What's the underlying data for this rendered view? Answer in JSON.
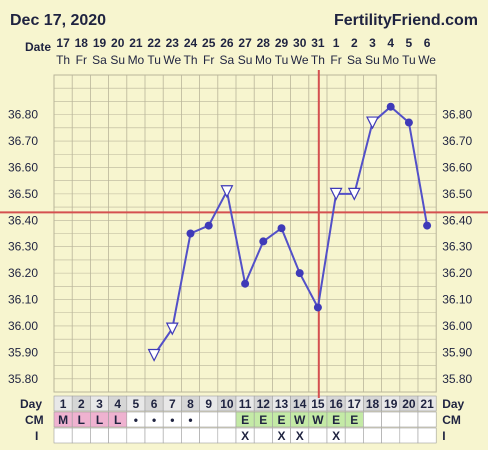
{
  "header": {
    "date": "Dec 17, 2020",
    "site": "FertilityFriend.com"
  },
  "row_labels": {
    "date": "Date",
    "day": "Day",
    "cm": "CM",
    "i": "I"
  },
  "colors": {
    "background": "#f7f5cf",
    "grid": "#b9b59a",
    "line": "#5350c8",
    "marker": "#3f3ab8",
    "coverline": "#d45050",
    "ovulation": "#d45050",
    "menses_cell": "#efb2d0",
    "eggwhite_cell": "#c4eaa6",
    "day_row": "#e0e0e0"
  },
  "chart_data": {
    "type": "line",
    "title": "",
    "xlabel": "",
    "ylabel": "",
    "ylim": [
      35.75,
      36.95
    ],
    "yticks": [
      "36.80",
      "36.70",
      "36.60",
      "36.50",
      "36.40",
      "36.30",
      "36.20",
      "36.10",
      "36.00",
      "35.90",
      "35.80"
    ],
    "ytick_values": [
      36.8,
      36.7,
      36.6,
      36.5,
      36.4,
      36.3,
      36.2,
      36.1,
      36.0,
      35.9,
      35.8
    ],
    "dates": [
      "17",
      "18",
      "19",
      "20",
      "21",
      "22",
      "23",
      "24",
      "25",
      "26",
      "27",
      "28",
      "29",
      "30",
      "31",
      "1",
      "2",
      "3",
      "4",
      "5",
      "6"
    ],
    "weekdays": [
      "Th",
      "Fr",
      "Sa",
      "Su",
      "Mo",
      "Tu",
      "We",
      "Th",
      "Fr",
      "Sa",
      "Su",
      "Mo",
      "Tu",
      "We",
      "Th",
      "Fr",
      "Sa",
      "Su",
      "Mo",
      "Tu",
      "We"
    ],
    "cycle_days": [
      "1",
      "2",
      "3",
      "4",
      "5",
      "6",
      "7",
      "8",
      "9",
      "10",
      "11",
      "12",
      "13",
      "14",
      "15",
      "16",
      "17",
      "18",
      "19",
      "20",
      "21"
    ],
    "temps": [
      null,
      null,
      null,
      null,
      null,
      35.89,
      35.99,
      36.35,
      36.38,
      36.51,
      36.16,
      36.32,
      36.37,
      36.2,
      36.07,
      36.5,
      36.5,
      36.77,
      36.83,
      36.77,
      36.38
    ],
    "open_markers": [
      6,
      7,
      10,
      16,
      17,
      18
    ],
    "coverline": 36.43,
    "ovulation_day": 15,
    "cervical_mucus": [
      "M",
      "L",
      "L",
      "L",
      "•",
      "•",
      "•",
      "•",
      "",
      "",
      "E",
      "E",
      "E",
      "W",
      "W",
      "E",
      "E",
      "",
      "",
      "",
      ""
    ],
    "intercourse": [
      "",
      "",
      "",
      "",
      "",
      "",
      "",
      "",
      "",
      "",
      "X",
      "",
      "X",
      "X",
      "",
      "X",
      "",
      "",
      "",
      "",
      ""
    ]
  }
}
